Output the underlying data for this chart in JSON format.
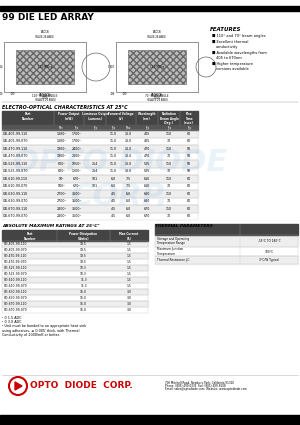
{
  "title": "99 DIE LED ARRAY",
  "features_title": "FEATURES",
  "features": [
    "110° and 70° beam angles",
    "Excellent thermal\nconductivity",
    "Available wavelengths from\n405 to 670nm",
    "Higher temperature\nversions available"
  ],
  "eo_title": "ELECTRO-OPTICAL CHARACTERISTICS AT 25°C",
  "abs_title": "ABSOLUTE MAXIMUM RATINGS AT 25°C²",
  "thermal_title": "THERMAL PARAMETERS",
  "eo_col_headers": [
    "Part\nNumber",
    "Power Output\n(mW)",
    "Luminous Output\n(Lumens)",
    "Forward Voltage\n(V)(0.14",
    "Wavelength\n(nm)(0.14",
    "Radiation\nBeam Angle\n(Deg.)",
    "Rise\nTime\n(nsec)"
  ],
  "eo_sub_headers": [
    "",
    "Min",
    "Typ",
    "Typ",
    "Typ",
    "Max",
    "Typ",
    "Typ",
    "Typ"
  ],
  "eo_data": [
    [
      "OD-405-99-110",
      "1300¹",
      "1700¹",
      "",
      "11.0",
      "13.0",
      "405",
      "110",
      "60"
    ],
    [
      "OD-405-99-070",
      "1300¹",
      "1700¹",
      "",
      "11.0",
      "13.0",
      "405",
      "70",
      "60"
    ],
    [
      "OD-470-99-110",
      "1900¹",
      "2400¹",
      "",
      "11.0",
      "13.0",
      "470",
      "110",
      "50"
    ],
    [
      "OD-470-99-070",
      "1900¹",
      "2100¹",
      "",
      "11.0",
      "13.0",
      "470",
      "70",
      "50"
    ],
    [
      "OD-525-99-110",
      "600¹",
      "1050¹",
      "254",
      "11.0",
      "13.0",
      "525",
      "110",
      "50"
    ],
    [
      "OD-525-99-070",
      "600¹",
      "1200¹",
      "254",
      "11.0",
      "13.0",
      "525",
      "70",
      "50"
    ],
    [
      "OD-610-99-110",
      "50¹",
      "670¹",
      "101",
      "6.0",
      "7.5",
      "610",
      "110",
      "60"
    ],
    [
      "OD-610-99-070",
      "500¹",
      "670¹",
      "101",
      "6.0",
      "7.5",
      "610",
      "70",
      "60"
    ],
    [
      "OD-630-99-110",
      "2700¹",
      "3500¹",
      "",
      "4.5",
      "6.0",
      "630",
      "110",
      "60"
    ],
    [
      "OD-630-99-070",
      "2700¹",
      "3500¹",
      "",
      "4.5",
      "6.0",
      "630",
      "70",
      "60"
    ],
    [
      "OD-670-99-110",
      "2800¹",
      "3500¹",
      "",
      "4.5",
      "6.0",
      "670",
      "110",
      "60"
    ],
    [
      "OD-670-99-070",
      "2800¹",
      "3500¹",
      "",
      "4.5",
      "6.0",
      "670",
      "70",
      "60"
    ]
  ],
  "abs_data": [
    [
      "OD-405-99-110",
      "19.5",
      "1.5"
    ],
    [
      "OD-405-99-070",
      "19.5",
      "1.5"
    ],
    [
      "OD-470-99-110",
      "19.5",
      "1.5"
    ],
    [
      "OD-470-99-070",
      "19.5",
      "1.5"
    ],
    [
      "OD-525-99-110",
      "10.3",
      "1.5"
    ],
    [
      "OD-525-99-070",
      "10.3",
      "1.5"
    ],
    [
      "OD-610-99-110",
      "11.3",
      "1.5"
    ],
    [
      "OD-610-99-070",
      "11.3",
      "1.5"
    ],
    [
      "OD-630-99-110",
      "16.0",
      "3.0"
    ],
    [
      "OD-630-99-070",
      "16.0",
      "3.0"
    ],
    [
      "OD-670-99-110",
      "16.0",
      "3.0"
    ],
    [
      "OD-670-99-070",
      "16.0",
      "3.0"
    ]
  ],
  "thermal_data": [
    [
      "Storage and Operating\nTemperature Range",
      "-55°C TO 180°C"
    ],
    [
      "Maximum Junction\nTemperature",
      "180°C"
    ],
    [
      "Thermal Resistance J-C",
      "3°C/W Typical"
    ]
  ],
  "footnote1": "¹ 0 1.5 ADC",
  "footnote2": "² 0 3.0 ADC",
  "footnote3": "³ Unit must be bonded to an appropriate heat sink\nusing adhesives, ≥ 0.005' thick, with Thermal\nConductivity of 2000/mK or better.",
  "logo_text": "OPTO  DIODE  CORP.",
  "address_line1": "700 Mitchell Road, Newbury Park, California 91320",
  "address_line2": "Phone: (805) 499-0335  Fax: (805) 499-8108",
  "address_line3": "Email: sales@optodiode.com  Website: www.optodiode.com",
  "bg_color": "#ffffff"
}
